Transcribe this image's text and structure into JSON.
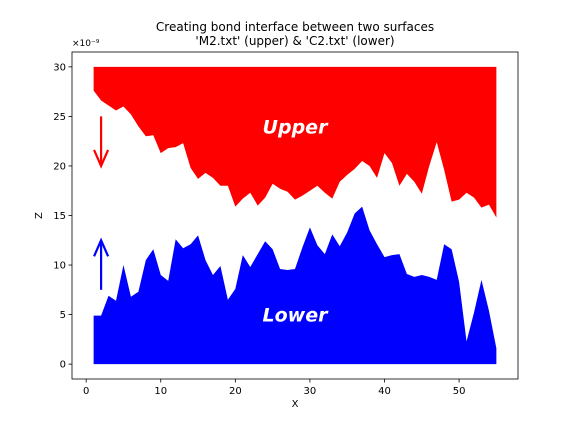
{
  "chart_data": {
    "type": "area",
    "title": "Creating bond interface between two surfaces\n'M2.txt' (upper) & 'C2.txt' (lower)",
    "title_lines": [
      "Creating bond interface between two surfaces",
      "'M2.txt' (upper) & 'C2.txt' (lower)"
    ],
    "xlabel": "X",
    "ylabel": "Z",
    "y_scale_label": "×10⁻⁹",
    "xlim": [
      -1.9,
      57.9
    ],
    "ylim": [
      -1.5,
      31.5
    ],
    "x_ticks": [
      0,
      10,
      20,
      30,
      40,
      50
    ],
    "y_ticks": [
      0,
      5,
      10,
      15,
      20,
      25,
      30
    ],
    "grid": false,
    "annotations": [
      {
        "text": "Upper",
        "x": 28,
        "y": 24,
        "color": "#ffffff"
      },
      {
        "text": "Lower",
        "x": 28,
        "y": 5,
        "color": "#ffffff"
      }
    ],
    "arrows": [
      {
        "x": 2,
        "from": 25,
        "to": 20,
        "color": "#ff0000"
      },
      {
        "x": 2,
        "from": 7.5,
        "to": 12.5,
        "color": "#0000ff"
      }
    ],
    "series": [
      {
        "name": "upper",
        "color": "#ff0000",
        "fill_to": 30,
        "x": [
          1,
          2,
          3,
          4,
          5,
          6,
          7,
          8,
          9,
          10,
          11,
          12,
          13,
          14,
          15,
          16,
          17,
          18,
          19,
          20,
          21,
          22,
          23,
          24,
          25,
          26,
          27,
          28,
          29,
          30,
          31,
          32,
          33,
          34,
          35,
          36,
          37,
          38,
          39,
          40,
          41,
          42,
          43,
          44,
          45,
          46,
          47,
          48,
          49,
          50,
          51,
          52,
          53,
          54,
          55
        ],
        "values": [
          27.6,
          26.6,
          26.1,
          25.6,
          26.0,
          25.2,
          24.0,
          23.0,
          23.1,
          21.3,
          21.8,
          21.9,
          22.3,
          19.8,
          18.7,
          19.3,
          18.8,
          18.0,
          18.0,
          15.9,
          16.7,
          17.3,
          16.0,
          16.8,
          18.2,
          17.7,
          17.4,
          16.6,
          17.0,
          17.5,
          18.0,
          17.3,
          16.7,
          18.4,
          19.1,
          19.7,
          20.5,
          20.0,
          18.8,
          21.3,
          20.3,
          18.0,
          19.2,
          18.4,
          17.2,
          20.0,
          22.4,
          19.6,
          16.4,
          16.6,
          17.3,
          16.8,
          15.8,
          16.1,
          14.8
        ]
      },
      {
        "name": "lower",
        "color": "#0000ff",
        "fill_to": 0,
        "x": [
          1,
          2,
          3,
          4,
          5,
          6,
          7,
          8,
          9,
          10,
          11,
          12,
          13,
          14,
          15,
          16,
          17,
          18,
          19,
          20,
          21,
          22,
          23,
          24,
          25,
          26,
          27,
          28,
          29,
          30,
          31,
          32,
          33,
          34,
          35,
          36,
          37,
          38,
          39,
          40,
          41,
          42,
          43,
          44,
          45,
          46,
          47,
          48,
          49,
          50,
          51,
          52,
          53,
          54,
          55
        ],
        "values": [
          4.9,
          4.9,
          6.9,
          6.4,
          10.0,
          6.8,
          7.3,
          10.5,
          11.6,
          9.0,
          8.4,
          12.6,
          11.7,
          12.1,
          13.0,
          10.5,
          9.0,
          9.9,
          6.5,
          7.6,
          11.0,
          9.8,
          11.1,
          12.4,
          11.6,
          9.6,
          9.5,
          9.6,
          11.8,
          13.8,
          12.0,
          11.1,
          13.1,
          11.9,
          13.3,
          15.2,
          15.9,
          13.5,
          12.1,
          10.8,
          11.0,
          11.1,
          9.1,
          8.8,
          9.0,
          8.8,
          8.5,
          12.1,
          11.6,
          8.3,
          2.3,
          5.2,
          8.5,
          5.4,
          1.6
        ]
      }
    ]
  }
}
